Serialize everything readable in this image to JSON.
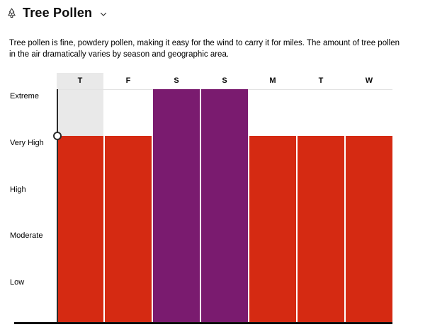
{
  "header": {
    "title": "Tree Pollen",
    "tree_icon": "evergreen-tree-icon",
    "chevron_icon": "chevron-down-icon"
  },
  "description": "Tree pollen is fine, powdery pollen, making it easy for the wind to carry it for miles. The amount of tree pollen in the air dramatically varies by season and geographic area.",
  "colors": {
    "very_high_red": "#d52a12",
    "extreme_purple": "#7a1b6f",
    "selected_day_bg": "#e9e9e9",
    "gridline": "#e3e3e3",
    "axis": "#111111",
    "scrubber": "#2b2b2b"
  },
  "chart_data": {
    "type": "bar",
    "title": "Tree Pollen",
    "categories": [
      "T",
      "F",
      "S",
      "S",
      "M",
      "T",
      "W"
    ],
    "values": [
      "Very High",
      "Very High",
      "Extreme",
      "Extreme",
      "Very High",
      "Very High",
      "Very High"
    ],
    "numeric_values": [
      4,
      4,
      5,
      5,
      4,
      4,
      4
    ],
    "level_scale_low_to_high": [
      "Low",
      "Moderate",
      "High",
      "Very High",
      "Extreme"
    ],
    "y_axis_labels_top_to_bottom": [
      "Extreme",
      "Very High",
      "High",
      "Moderate",
      "Low"
    ],
    "selected_index": 0,
    "legend": "none",
    "grid": "extreme-line-only",
    "xlabel": "",
    "ylabel": ""
  }
}
